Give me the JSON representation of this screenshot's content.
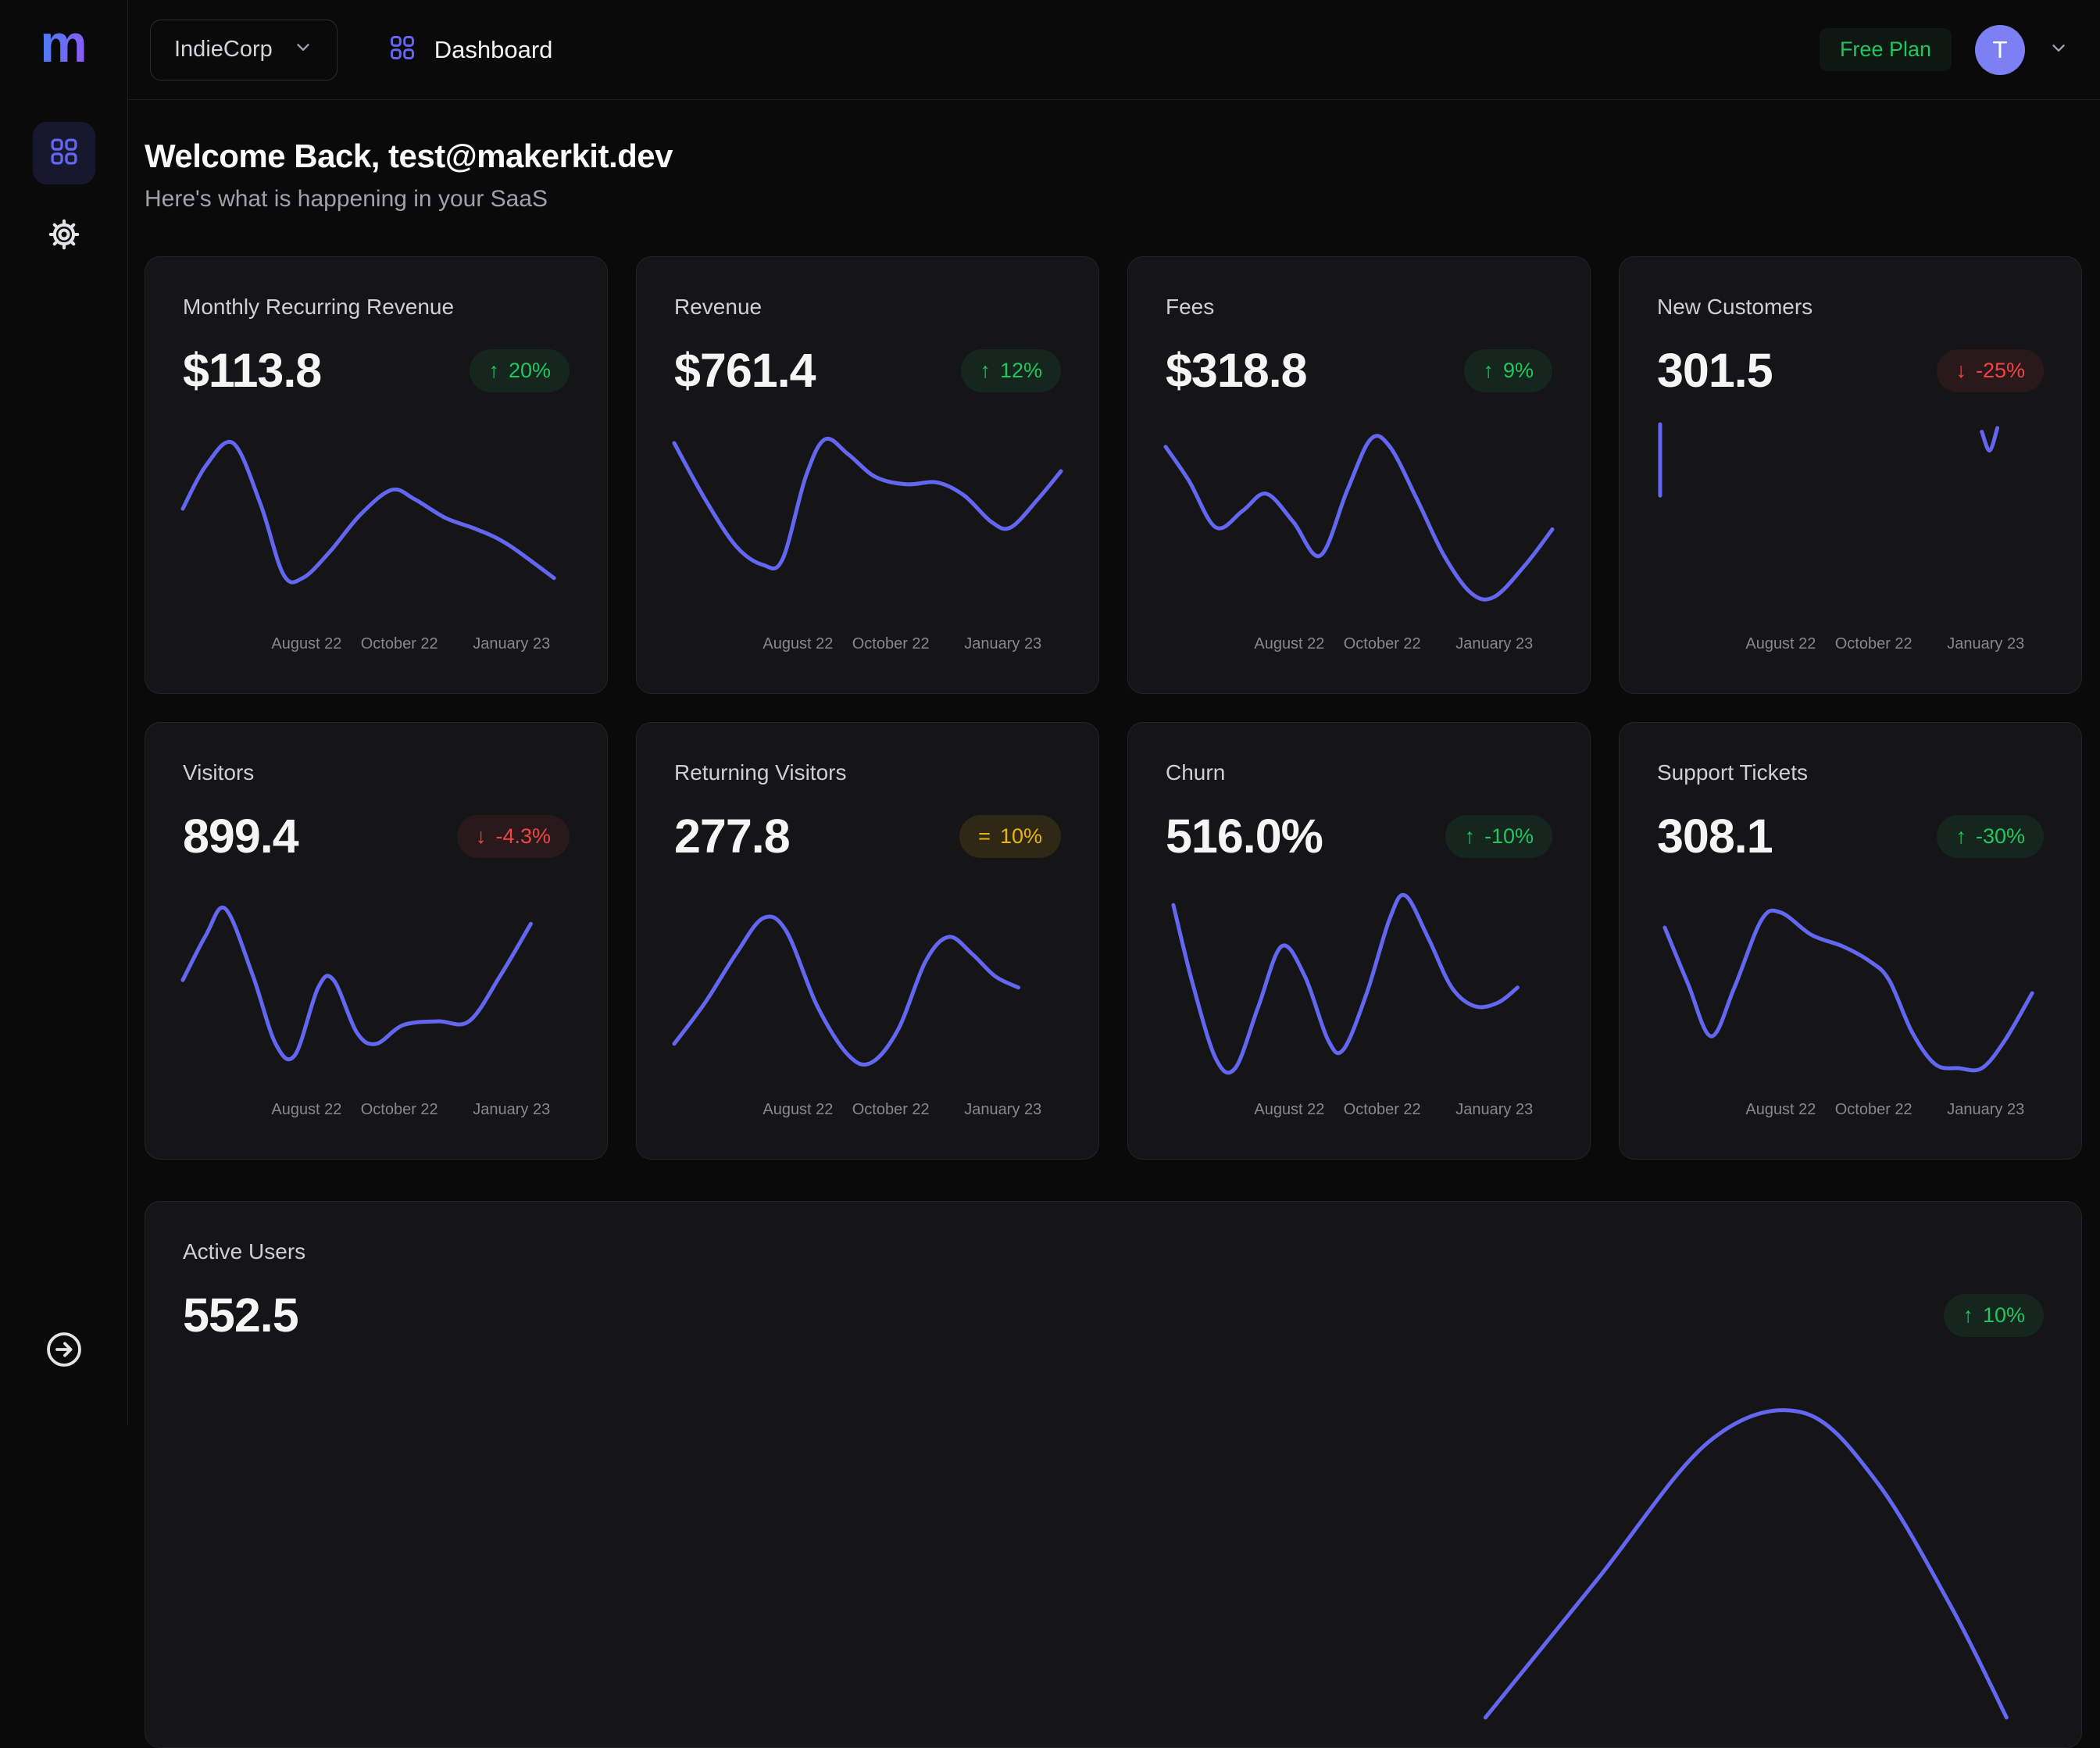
{
  "brand": {
    "logo_letter": "m"
  },
  "topbar": {
    "team_selector": "IndieCorp",
    "breadcrumb": "Dashboard",
    "plan_badge": "Free Plan",
    "avatar_initial": "T"
  },
  "welcome": {
    "title": "Welcome Back, test@makerkit.dev",
    "subtitle": "Here's what is happening in your SaaS"
  },
  "colors": {
    "accent": "#6366f1",
    "positive": "#22c55e",
    "positive_bg": "rgba(34,197,94,0.10)",
    "negative": "#ef4444",
    "negative_bg": "rgba(239,68,68,0.10)",
    "neutral": "#eab308",
    "neutral_bg": "rgba(234,179,8,0.12)",
    "plan_badge_bg": "rgba(34,197,94,0.08)",
    "avatar_bg": "#7c80f2"
  },
  "axis_labels": [
    "August 22",
    "October 22",
    "January 23"
  ],
  "chart_data": {
    "note": "sparkline shapes per metric card stored as cards[].chart_segments (x,y in % of plot, y from top)"
  },
  "cards": [
    {
      "title": "Monthly Recurring Revenue",
      "value": "$113.8",
      "trend": "up",
      "arrow": "↑",
      "change": "20%",
      "chart_segments": [
        [
          [
            0,
            45
          ],
          [
            6,
            22
          ],
          [
            13,
            10
          ],
          [
            20,
            42
          ],
          [
            26,
            80
          ],
          [
            31,
            82
          ],
          [
            38,
            68
          ],
          [
            46,
            48
          ],
          [
            54,
            35
          ],
          [
            60,
            40
          ],
          [
            68,
            50
          ],
          [
            76,
            56
          ],
          [
            84,
            64
          ],
          [
            96,
            82
          ]
        ]
      ]
    },
    {
      "title": "Revenue",
      "value": "$761.4",
      "trend": "up",
      "arrow": "↑",
      "change": "12%",
      "chart_segments": [
        [
          [
            0,
            10
          ],
          [
            8,
            40
          ],
          [
            16,
            65
          ],
          [
            23,
            75
          ],
          [
            28,
            72
          ],
          [
            34,
            28
          ],
          [
            39,
            8
          ],
          [
            45,
            16
          ],
          [
            52,
            28
          ],
          [
            60,
            32
          ],
          [
            68,
            31
          ],
          [
            75,
            38
          ],
          [
            82,
            52
          ],
          [
            87,
            55
          ],
          [
            94,
            40
          ],
          [
            100,
            25
          ]
        ]
      ]
    },
    {
      "title": "Fees",
      "value": "$318.8",
      "trend": "up",
      "arrow": "↑",
      "change": "9%",
      "chart_segments": [
        [
          [
            0,
            12
          ],
          [
            6,
            30
          ],
          [
            13,
            55
          ],
          [
            20,
            46
          ],
          [
            26,
            37
          ],
          [
            33,
            52
          ],
          [
            40,
            70
          ],
          [
            47,
            35
          ],
          [
            53,
            8
          ],
          [
            58,
            12
          ],
          [
            65,
            40
          ],
          [
            72,
            70
          ],
          [
            79,
            90
          ],
          [
            85,
            92
          ],
          [
            93,
            75
          ],
          [
            100,
            56
          ]
        ]
      ]
    },
    {
      "title": "New Customers",
      "value": "301.5",
      "trend": "down",
      "arrow": "↓",
      "change": "-25%",
      "chart_segments": [
        [
          [
            0.8,
            0
          ],
          [
            0.8,
            38
          ]
        ],
        [
          [
            84,
            4
          ],
          [
            86,
            14
          ],
          [
            88,
            2
          ]
        ]
      ]
    },
    {
      "title": "Visitors",
      "value": "899.4",
      "trend": "down",
      "arrow": "↓",
      "change": "-4.3%",
      "chart_segments": [
        [
          [
            0,
            48
          ],
          [
            6,
            24
          ],
          [
            11,
            10
          ],
          [
            18,
            45
          ],
          [
            24,
            82
          ],
          [
            29,
            88
          ],
          [
            35,
            52
          ],
          [
            39,
            48
          ],
          [
            45,
            76
          ],
          [
            50,
            82
          ],
          [
            57,
            72
          ],
          [
            66,
            70
          ],
          [
            74,
            70
          ],
          [
            82,
            46
          ],
          [
            90,
            18
          ]
        ]
      ]
    },
    {
      "title": "Returning Visitors",
      "value": "277.8",
      "trend": "flat",
      "arrow": "=",
      "change": "10%",
      "chart_segments": [
        [
          [
            0,
            82
          ],
          [
            8,
            60
          ],
          [
            16,
            34
          ],
          [
            23,
            15
          ],
          [
            29,
            22
          ],
          [
            37,
            62
          ],
          [
            45,
            88
          ],
          [
            51,
            92
          ],
          [
            58,
            74
          ],
          [
            65,
            38
          ],
          [
            71,
            25
          ],
          [
            77,
            34
          ],
          [
            83,
            46
          ],
          [
            89,
            52
          ]
        ]
      ]
    },
    {
      "title": "Churn",
      "value": "516.0%",
      "trend": "up",
      "arrow": "↑",
      "change": "-10%",
      "chart_segments": [
        [
          [
            2,
            8
          ],
          [
            7,
            50
          ],
          [
            13,
            90
          ],
          [
            18,
            95
          ],
          [
            24,
            62
          ],
          [
            30,
            30
          ],
          [
            36,
            46
          ],
          [
            42,
            80
          ],
          [
            46,
            85
          ],
          [
            52,
            55
          ],
          [
            58,
            15
          ],
          [
            62,
            3
          ],
          [
            68,
            26
          ],
          [
            74,
            52
          ],
          [
            80,
            62
          ],
          [
            86,
            60
          ],
          [
            91,
            52
          ]
        ]
      ]
    },
    {
      "title": "Support Tickets",
      "value": "308.1",
      "trend": "up",
      "arrow": "↑",
      "change": "-30%",
      "chart_segments": [
        [
          [
            2,
            20
          ],
          [
            8,
            50
          ],
          [
            14,
            78
          ],
          [
            20,
            52
          ],
          [
            27,
            16
          ],
          [
            32,
            12
          ],
          [
            40,
            24
          ],
          [
            48,
            30
          ],
          [
            55,
            38
          ],
          [
            60,
            48
          ],
          [
            66,
            76
          ],
          [
            72,
            93
          ],
          [
            78,
            95
          ],
          [
            84,
            95
          ],
          [
            90,
            80
          ],
          [
            97,
            55
          ]
        ]
      ]
    },
    {
      "title": "Active Users",
      "value": "552.5",
      "trend": "up",
      "arrow": "↑",
      "change": "10%",
      "wide": true,
      "chart_segments": [
        [
          [
            70,
            100
          ],
          [
            76,
            58
          ],
          [
            82,
            16
          ],
          [
            87,
            7
          ],
          [
            91,
            28
          ],
          [
            95,
            66
          ],
          [
            98,
            100
          ]
        ]
      ]
    }
  ]
}
